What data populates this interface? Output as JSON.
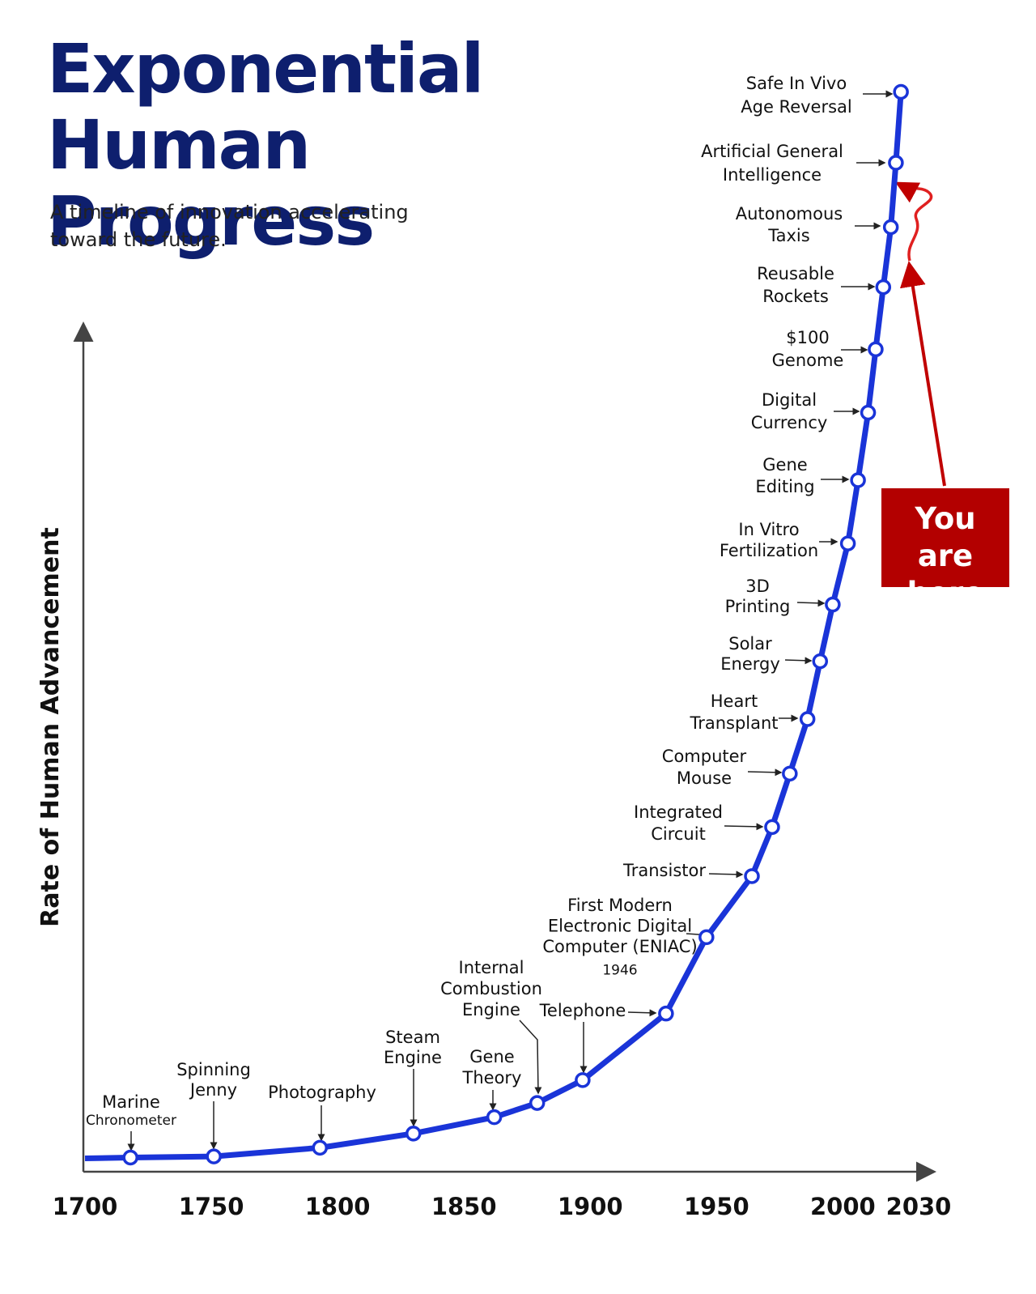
{
  "chart_data": {
    "type": "line",
    "title": "Exponential Human Progress",
    "subtitle": "A timeline of innovation accelerating toward the future.",
    "y_label": "Rate of Human Advancement",
    "annotation": "You are here",
    "color": "#1a34d8",
    "xlim": [
      1700,
      2030
    ],
    "xticks": [
      1700,
      1750,
      1800,
      1850,
      1900,
      1950,
      2000,
      2030
    ],
    "ylim": [
      0,
      100
    ],
    "x": [
      1718,
      1751,
      1793,
      1830,
      1862,
      1879,
      1897,
      1930,
      1946,
      1964,
      1972,
      1979,
      1986,
      1991,
      1996,
      2002,
      2006,
      2010,
      2013,
      2016,
      2019,
      2021,
      2023
    ],
    "values": [
      1.3,
      1.4,
      2.2,
      3.5,
      5.0,
      6.3,
      8.4,
      14.5,
      21.5,
      27.1,
      31.6,
      36.5,
      41.5,
      46.8,
      52.0,
      57.6,
      63.4,
      69.6,
      75.4,
      81.1,
      86.6,
      92.5,
      99.0
    ],
    "labels": [
      [
        "Marine",
        "Chronometer"
      ],
      [
        "Spinning",
        "Jenny"
      ],
      [
        "Photography"
      ],
      [
        "Steam",
        "Engine"
      ],
      [
        "Gene",
        "Theory"
      ],
      [
        "Internal",
        "Combustion",
        "Engine"
      ],
      [
        "Telephone"
      ],
      null,
      [
        "First Modern",
        "Electronic Digital",
        "Computer (ENIAC)"
      ],
      [
        "Transistor"
      ],
      [
        "Integrated",
        "Circuit"
      ],
      [
        "Computer",
        "Mouse"
      ],
      [
        "Heart",
        "Transplant"
      ],
      [
        "Solar",
        "Energy"
      ],
      [
        "3D",
        "Printing"
      ],
      [
        "In Vitro",
        "Fertilization"
      ],
      [
        "Gene",
        "Editing"
      ],
      [
        "Digital",
        "Currency"
      ],
      [
        "$100",
        "Genome"
      ],
      [
        "Reusable",
        "Rockets"
      ],
      [
        "Autonomous",
        "Taxis"
      ],
      [
        "Artificial General",
        "Intelligence"
      ],
      [
        "Safe In Vivo",
        "Age Reversal"
      ]
    ]
  }
}
